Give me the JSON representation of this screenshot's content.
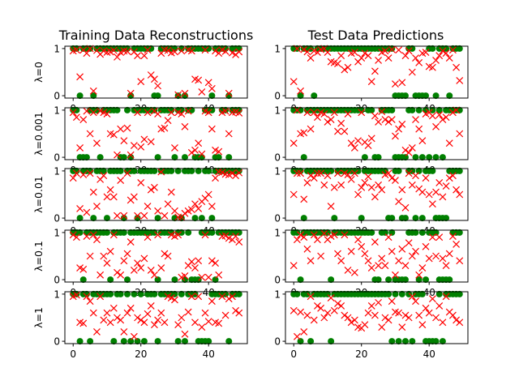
{
  "chart_data": {
    "type": "scatter",
    "column_titles": [
      "Training Data Reconstructions",
      "Test Data Predictions"
    ],
    "row_labels": [
      "λ=0",
      "λ=0.001",
      "λ=0.01",
      "λ=0.1",
      "λ=1"
    ],
    "x_ticks": [
      0,
      20,
      40
    ],
    "y_ticks": [
      0,
      1
    ],
    "xlim": [
      -2.45,
      51.45
    ],
    "ylim": [
      -0.05,
      1.05
    ],
    "grid": false,
    "marker_styles": {
      "target": {
        "marker": "circle",
        "color": "#008000"
      },
      "prediction": {
        "marker": "x",
        "color": "#ff0000"
      }
    },
    "panels": [
      {
        "row": 0,
        "col": 0,
        "targets": [
          1,
          1,
          0,
          1,
          1,
          1,
          0,
          1,
          1,
          1,
          1,
          1,
          1,
          1,
          1,
          1,
          1,
          0,
          1,
          1,
          1,
          1,
          1,
          1,
          0,
          0,
          1,
          1,
          1,
          1,
          1,
          0,
          1,
          0,
          1,
          1,
          1,
          1,
          1,
          1,
          1,
          0,
          1,
          1,
          1,
          1,
          0,
          1,
          1,
          1
        ],
        "predictions": [
          0.95,
          0.97,
          0.4,
          0.97,
          0.9,
          1.0,
          0.1,
          0.96,
          0.88,
          0.95,
          0.92,
          0.93,
          0.96,
          0.82,
          0.92,
          0.95,
          0.94,
          0.05,
          0.93,
          0.85,
          0.3,
          0.85,
          0.97,
          0.44,
          0.35,
          0.21,
          0.9,
          0.97,
          0.96,
          0.91,
          0.93,
          0.02,
          0.95,
          0.05,
          0.97,
          0.95,
          0.35,
          0.33,
          0.08,
          0.97,
          0.28,
          0.15,
          0.95,
          0.9,
          0.97,
          0.94,
          0.05,
          0.91,
          0.87,
          0.93
        ]
      },
      {
        "row": 0,
        "col": 1,
        "targets": [
          1,
          1,
          0,
          1,
          1,
          1,
          0,
          1,
          1,
          1,
          1,
          1,
          1,
          1,
          1,
          1,
          1,
          1,
          1,
          1,
          1,
          1,
          1,
          1,
          1,
          1,
          1,
          1,
          1,
          1,
          0,
          0,
          0,
          0,
          1,
          1,
          0,
          0,
          0,
          0,
          1,
          1,
          0,
          1,
          1,
          1,
          0,
          1,
          1,
          1
        ],
        "predictions": [
          0.3,
          1.0,
          0.1,
          0.98,
          0.93,
          0.8,
          0.95,
          0.92,
          0.98,
          1.0,
          0.92,
          0.72,
          0.7,
          0.68,
          0.85,
          0.55,
          0.6,
          0.9,
          0.92,
          0.72,
          0.8,
          0.9,
          0.85,
          0.3,
          0.52,
          0.75,
          0.92,
          0.95,
          0.8,
          0.98,
          0.25,
          0.97,
          0.28,
          0.85,
          0.95,
          0.5,
          0.8,
          0.7,
          0.9,
          0.92,
          0.62,
          0.6,
          0.75,
          0.85,
          0.95,
          0.9,
          0.8,
          0.97,
          0.6,
          0.32
        ]
      },
      {
        "row": 1,
        "col": 0,
        "targets": [
          1,
          1,
          0,
          0,
          0,
          1,
          1,
          1,
          0,
          1,
          1,
          1,
          1,
          1,
          0,
          0,
          1,
          0,
          1,
          1,
          1,
          1,
          1,
          1,
          1,
          0,
          1,
          1,
          1,
          1,
          0,
          1,
          1,
          0,
          1,
          1,
          0,
          0,
          0,
          1,
          1,
          1,
          0,
          0,
          1,
          1,
          0,
          1,
          1,
          1
        ],
        "predictions": [
          0.95,
          0.85,
          0.2,
          0.8,
          0.98,
          0.5,
          0.95,
          0.3,
          0.98,
          0.95,
          0.92,
          0.5,
          0.48,
          0.05,
          0.6,
          0.35,
          0.62,
          0.05,
          0.25,
          0.95,
          0.22,
          0.38,
          0.95,
          0.33,
          0.98,
          0.92,
          0.6,
          0.62,
          0.78,
          0.95,
          0.2,
          0.95,
          0.92,
          0.65,
          0.98,
          0.1,
          0.15,
          0.3,
          0.07,
          0.98,
          0.95,
          0.6,
          0.15,
          0.12,
          0.95,
          0.98,
          0.5,
          0.95,
          0.96,
          0.94
        ]
      },
      {
        "row": 1,
        "col": 1,
        "targets": [
          1,
          1,
          1,
          0,
          1,
          1,
          1,
          1,
          1,
          1,
          1,
          1,
          1,
          1,
          1,
          1,
          1,
          1,
          1,
          1,
          1,
          0,
          1,
          1,
          0,
          0,
          1,
          1,
          1,
          1,
          0,
          0,
          0,
          0,
          1,
          1,
          0,
          1,
          0,
          1,
          0,
          1,
          0,
          1,
          0,
          1,
          1,
          1,
          1,
          1
        ],
        "predictions": [
          0.3,
          1.0,
          0.5,
          0.52,
          0.95,
          0.6,
          0.95,
          0.85,
          0.95,
          0.92,
          0.75,
          0.8,
          0.95,
          0.55,
          0.72,
          0.55,
          0.92,
          0.3,
          0.2,
          0.35,
          0.95,
          0.32,
          0.25,
          0.4,
          0.88,
          0.75,
          0.97,
          0.8,
          0.75,
          0.8,
          0.45,
          0.6,
          0.7,
          0.15,
          0.1,
          0.2,
          0.8,
          0.6,
          0.35,
          0.92,
          0.95,
          0.88,
          0.65,
          0.9,
          0.8,
          0.85,
          0.3,
          0.95,
          1.0,
          0.5
        ]
      },
      {
        "row": 2,
        "col": 0,
        "targets": [
          1,
          1,
          0,
          1,
          1,
          1,
          0,
          1,
          1,
          1,
          0,
          1,
          1,
          1,
          1,
          0,
          1,
          1,
          1,
          0,
          1,
          1,
          1,
          1,
          1,
          0,
          1,
          1,
          1,
          1,
          0,
          1,
          0,
          1,
          1,
          1,
          0,
          1,
          0,
          1,
          1,
          0,
          1,
          1,
          1,
          1,
          1,
          1,
          1,
          1
        ],
        "predictions": [
          0.85,
          0.95,
          0.2,
          0.92,
          0.12,
          0.95,
          0.55,
          0.25,
          0.82,
          0.9,
          0.45,
          0.6,
          0.45,
          0.05,
          0.8,
          0.05,
          0.95,
          0.38,
          0.45,
          0.05,
          0.75,
          0.05,
          0.25,
          0.6,
          0.65,
          0.15,
          0.98,
          0.05,
          0.3,
          0.55,
          0.15,
          0.02,
          0.02,
          0.1,
          0.15,
          0.18,
          0.3,
          0.2,
          0.35,
          0.42,
          0.5,
          0.25,
          0.85,
          0.98,
          0.97,
          0.93,
          0.92,
          0.95,
          0.9,
          0.96
        ]
      },
      {
        "row": 2,
        "col": 1,
        "targets": [
          1,
          1,
          1,
          0,
          1,
          1,
          1,
          1,
          1,
          1,
          1,
          1,
          0,
          1,
          1,
          1,
          1,
          1,
          1,
          1,
          0,
          1,
          1,
          1,
          1,
          1,
          1,
          1,
          0,
          0,
          1,
          1,
          0,
          0,
          1,
          1,
          0,
          1,
          0,
          1,
          1,
          1,
          0,
          0,
          0,
          0,
          1,
          1,
          1,
          1
        ],
        "predictions": [
          0.5,
          0.95,
          0.95,
          0.4,
          0.75,
          0.9,
          0.85,
          0.95,
          0.95,
          0.7,
          0.9,
          0.25,
          0.65,
          0.95,
          0.7,
          0.95,
          0.92,
          0.82,
          0.95,
          0.5,
          0.65,
          0.75,
          0.88,
          0.65,
          0.45,
          0.7,
          0.6,
          0.92,
          0.95,
          0.85,
          0.8,
          0.35,
          0.6,
          0.22,
          0.95,
          0.7,
          0.9,
          0.62,
          0.55,
          0.85,
          0.5,
          0.3,
          0.55,
          0.75,
          0.45,
          0.68,
          0.85,
          0.9,
          0.6,
          0.5
        ]
      },
      {
        "row": 3,
        "col": 0,
        "targets": [
          1,
          1,
          1,
          0,
          1,
          1,
          1,
          1,
          1,
          1,
          1,
          0,
          1,
          1,
          1,
          1,
          0,
          1,
          1,
          1,
          1,
          1,
          1,
          1,
          1,
          0,
          1,
          1,
          1,
          1,
          0,
          1,
          1,
          0,
          1,
          0,
          0,
          0,
          1,
          1,
          1,
          1,
          0,
          1,
          1,
          1,
          1,
          1,
          1,
          1
        ],
        "predictions": [
          0.95,
          0.9,
          0.25,
          0.22,
          0.92,
          0.5,
          0.95,
          0.85,
          0.1,
          0.5,
          0.35,
          0.6,
          0.95,
          0.15,
          0.1,
          0.4,
          0.55,
          0.8,
          0.2,
          0.35,
          0.25,
          0.45,
          0.9,
          0.2,
          0.1,
          0.95,
          0.25,
          0.55,
          0.5,
          0.95,
          0.92,
          0.95,
          0.05,
          0.08,
          0.3,
          0.38,
          0.25,
          0.4,
          0.05,
          0.95,
          0.05,
          0.4,
          0.35,
          0.1,
          0.92,
          0.93,
          0.88,
          0.85,
          0.92,
          0.8
        ]
      },
      {
        "row": 3,
        "col": 1,
        "targets": [
          1,
          1,
          0,
          1,
          1,
          1,
          1,
          1,
          1,
          1,
          1,
          0,
          1,
          1,
          1,
          1,
          1,
          1,
          1,
          1,
          1,
          1,
          1,
          1,
          0,
          0,
          1,
          1,
          0,
          1,
          0,
          0,
          0,
          0,
          1,
          1,
          1,
          0,
          1,
          0,
          1,
          1,
          1,
          0,
          0,
          0,
          0,
          1,
          1,
          1
        ],
        "predictions": [
          0.3,
          0.85,
          0.95,
          0.9,
          0.65,
          0.4,
          0.95,
          0.85,
          0.5,
          0.98,
          0.85,
          0.92,
          0.95,
          0.55,
          0.4,
          0.95,
          0.2,
          0.6,
          0.15,
          0.85,
          0.7,
          0.55,
          0.4,
          0.25,
          0.8,
          0.3,
          0.45,
          0.3,
          0.9,
          0.6,
          0.1,
          0.4,
          0.65,
          0.3,
          0.78,
          0.5,
          0.6,
          0.1,
          0.25,
          0.7,
          0.45,
          0.9,
          0.5,
          0.9,
          0.45,
          0.3,
          0.55,
          0.92,
          0.75,
          0.4
        ]
      },
      {
        "row": 4,
        "col": 0,
        "targets": [
          1,
          1,
          0,
          1,
          1,
          0,
          1,
          1,
          1,
          1,
          1,
          1,
          0,
          1,
          1,
          0,
          1,
          0,
          1,
          0,
          1,
          0,
          1,
          1,
          1,
          0,
          1,
          1,
          1,
          1,
          1,
          0,
          1,
          0,
          1,
          1,
          1,
          0,
          0,
          0,
          0,
          1,
          1,
          1,
          1,
          1,
          0,
          1,
          1,
          1
        ],
        "predictions": [
          0.95,
          0.98,
          0.4,
          0.38,
          0.95,
          0.85,
          0.6,
          0.2,
          0.95,
          0.45,
          0.6,
          0.4,
          0.7,
          0.5,
          0.45,
          0.2,
          0.6,
          0.7,
          0.1,
          0.5,
          0.45,
          0.4,
          0.58,
          0.75,
          0.35,
          0.45,
          0.6,
          0.4,
          0.95,
          0.92,
          0.88,
          0.35,
          0.5,
          0.15,
          0.62,
          0.95,
          0.4,
          0.95,
          0.3,
          0.6,
          0.42,
          0.85,
          0.4,
          0.38,
          0.95,
          0.55,
          0.9,
          0.95,
          0.65,
          0.6
        ]
      },
      {
        "row": 4,
        "col": 1,
        "targets": [
          1,
          1,
          0,
          1,
          1,
          0,
          1,
          1,
          1,
          1,
          1,
          0,
          1,
          1,
          1,
          1,
          1,
          1,
          1,
          1,
          1,
          1,
          1,
          1,
          1,
          1,
          1,
          1,
          1,
          0,
          1,
          0,
          1,
          0,
          1,
          0,
          1,
          1,
          1,
          0,
          0,
          0,
          0,
          1,
          0,
          1,
          1,
          1,
          1,
          1
        ],
        "predictions": [
          0.65,
          0.1,
          0.62,
          0.2,
          0.55,
          0.95,
          0.45,
          0.75,
          0.7,
          0.5,
          0.6,
          0.92,
          0.65,
          0.8,
          0.75,
          0.55,
          0.5,
          0.4,
          0.45,
          0.3,
          0.28,
          0.35,
          0.6,
          0.75,
          0.55,
          0.82,
          0.3,
          0.5,
          0.45,
          0.85,
          0.62,
          0.6,
          0.3,
          0.55,
          0.5,
          0.95,
          0.85,
          0.55,
          0.35,
          0.7,
          0.6,
          0.9,
          0.5,
          0.75,
          0.4,
          0.95,
          0.62,
          0.55,
          0.45,
          0.4
        ]
      }
    ]
  }
}
